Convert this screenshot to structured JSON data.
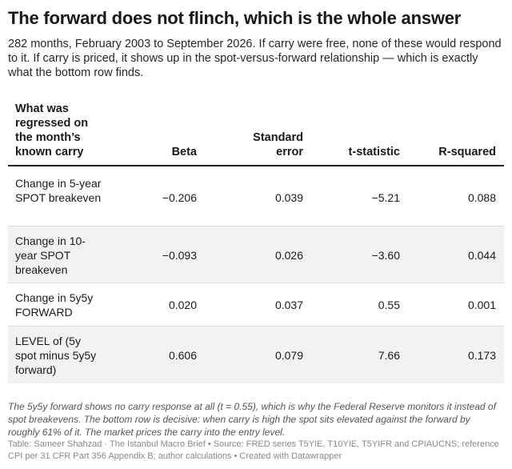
{
  "title": "The forward does not flinch, which is the whole answer",
  "subtitle": "282 months, February 2003 to September 2026. If carry were free, none of these would respond to it. If carry is priced, it shows up in the spot-versus-forward relationship — which is exactly what the bottom row finds.",
  "table": {
    "headers": {
      "label": "What was regressed on the month’s known carry",
      "beta": "Beta",
      "se": "Standard error",
      "t": "t-statistic",
      "r2": "R-squared"
    },
    "rows": [
      {
        "label": "Change in 5-year SPOT breakeven",
        "beta": "−0.206",
        "se": "0.039",
        "t": "−5.21",
        "r2": "0.088"
      },
      {
        "label": "Change in 10-year SPOT breakeven",
        "beta": "−0.093",
        "se": "0.026",
        "t": "−3.60",
        "r2": "0.044"
      },
      {
        "label": "Change in 5y5y FORWARD",
        "beta": "0.020",
        "se": "0.037",
        "t": "0.55",
        "r2": "0.001"
      },
      {
        "label": "LEVEL of (5y spot minus 5y5y forward)",
        "beta": "0.606",
        "se": "0.079",
        "t": "7.66",
        "r2": "0.173"
      }
    ]
  },
  "notes": "The 5y5y forward shows no carry response at all (t = 0.55), which is why the Federal Reserve monitors it instead of spot breakevens. The bottom row is decisive: when carry is high the spot sits elevated against the forward by roughly 61% of it. The market prices the carry into the entry level.",
  "source": "Table: Sameer Shahzad · The Istanbul Macro Brief • Source: FRED series T5YIE, T10YIE, T5YIFR and CPIAUCNS; reference CPI per 31 CFR Part 356 Appendix B; author calculations • Created with Datawrapper"
}
